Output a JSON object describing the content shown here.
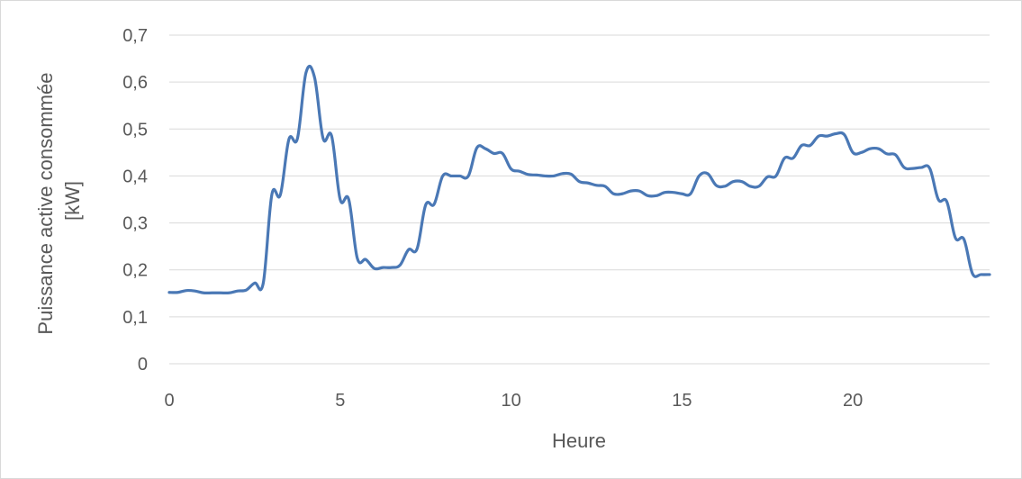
{
  "chart_data": {
    "type": "line",
    "title": "",
    "xlabel": "Heure",
    "ylabel_lines": [
      "Puissance active consommée",
      "[kW]"
    ],
    "xlim": [
      0,
      24
    ],
    "ylim": [
      0,
      0.7
    ],
    "x_ticks": [
      0,
      5,
      10,
      15,
      20
    ],
    "x_tick_labels": [
      "0",
      "5",
      "10",
      "15",
      "20"
    ],
    "y_ticks": [
      0,
      0.1,
      0.2,
      0.3,
      0.4,
      0.5,
      0.6,
      0.7
    ],
    "y_tick_labels": [
      "0",
      "0,1",
      "0,2",
      "0,3",
      "0,4",
      "0,5",
      "0,6",
      "0,7"
    ],
    "grid": true,
    "legend": "none",
    "colors": {
      "line": "#4a78b5",
      "grid": "#d9d9d9",
      "text": "#595959",
      "border": "#d9d9d9"
    },
    "series": [
      {
        "x": [
          0.0,
          0.25,
          0.5,
          0.75,
          1.0,
          1.25,
          1.5,
          1.75,
          2.0,
          2.25,
          2.5,
          2.75,
          3.0,
          3.25,
          3.5,
          3.75,
          4.0,
          4.25,
          4.5,
          4.75,
          5.0,
          5.25,
          5.5,
          5.75,
          6.0,
          6.25,
          6.5,
          6.75,
          7.0,
          7.25,
          7.5,
          7.75,
          8.0,
          8.25,
          8.5,
          8.75,
          9.0,
          9.25,
          9.5,
          9.75,
          10.0,
          10.25,
          10.5,
          10.75,
          11.0,
          11.25,
          11.5,
          11.75,
          12.0,
          12.25,
          12.5,
          12.75,
          13.0,
          13.25,
          13.5,
          13.75,
          14.0,
          14.25,
          14.5,
          14.75,
          15.0,
          15.25,
          15.5,
          15.75,
          16.0,
          16.25,
          16.5,
          16.75,
          17.0,
          17.25,
          17.5,
          17.75,
          18.0,
          18.25,
          18.5,
          18.75,
          19.0,
          19.25,
          19.5,
          19.75,
          20.0,
          20.25,
          20.5,
          20.75,
          21.0,
          21.25,
          21.5,
          21.75,
          22.0,
          22.25,
          22.5,
          22.75,
          23.0,
          23.25,
          23.5,
          23.75,
          24.0
        ],
        "values": [
          0.152,
          0.152,
          0.156,
          0.155,
          0.151,
          0.151,
          0.151,
          0.151,
          0.155,
          0.157,
          0.172,
          0.172,
          0.36,
          0.36,
          0.478,
          0.48,
          0.62,
          0.61,
          0.48,
          0.485,
          0.35,
          0.35,
          0.225,
          0.222,
          0.203,
          0.205,
          0.205,
          0.21,
          0.243,
          0.245,
          0.338,
          0.34,
          0.4,
          0.4,
          0.4,
          0.4,
          0.46,
          0.458,
          0.448,
          0.448,
          0.415,
          0.41,
          0.403,
          0.402,
          0.4,
          0.4,
          0.405,
          0.404,
          0.388,
          0.385,
          0.38,
          0.378,
          0.362,
          0.362,
          0.368,
          0.368,
          0.358,
          0.358,
          0.365,
          0.365,
          0.362,
          0.362,
          0.4,
          0.405,
          0.38,
          0.378,
          0.388,
          0.388,
          0.378,
          0.378,
          0.398,
          0.4,
          0.438,
          0.438,
          0.465,
          0.465,
          0.485,
          0.485,
          0.49,
          0.488,
          0.45,
          0.45,
          0.458,
          0.458,
          0.447,
          0.445,
          0.418,
          0.416,
          0.418,
          0.416,
          0.35,
          0.345,
          0.268,
          0.265,
          0.192,
          0.19,
          0.19
        ]
      }
    ]
  }
}
